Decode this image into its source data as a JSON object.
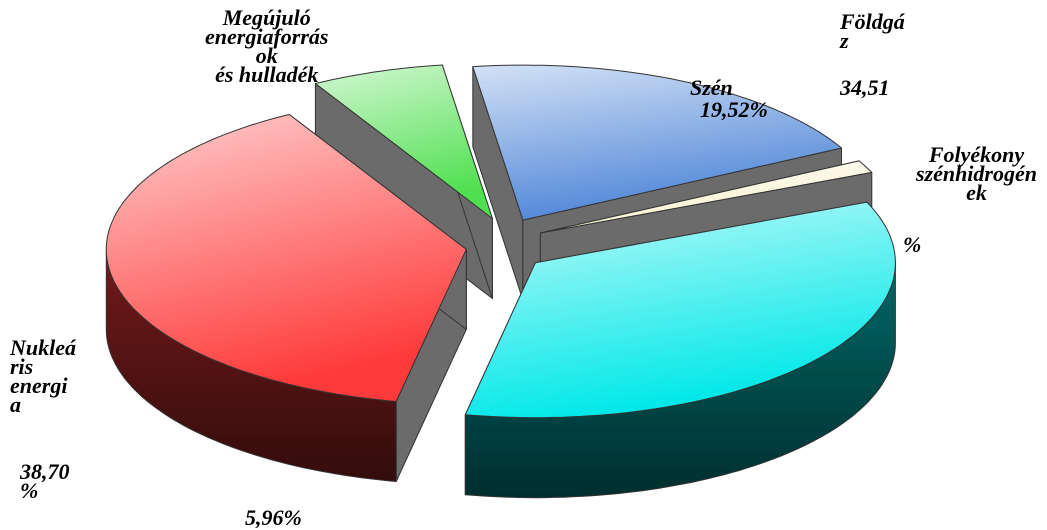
{
  "chart_data": {
    "type": "pie",
    "categories": [
      "Szén",
      "Folyékony\nszénhidrogén\nek",
      "Földgá\nz",
      "Nukleá\nris\nenergi\na",
      "Megújuló\nenergiaforrás\nok\nés hulladék"
    ],
    "values": [
      19.52,
      1.31,
      34.51,
      38.7,
      5.96
    ],
    "value_labels": [
      "19,52%",
      "%",
      "34,51",
      "38,70\n%",
      "5,96%"
    ],
    "colors": [
      "#4f86d8",
      "#f6f2cf",
      "#00e8e8",
      "#ff3a3a",
      "#4fe04f"
    ],
    "exploded": true,
    "three_d": true
  }
}
